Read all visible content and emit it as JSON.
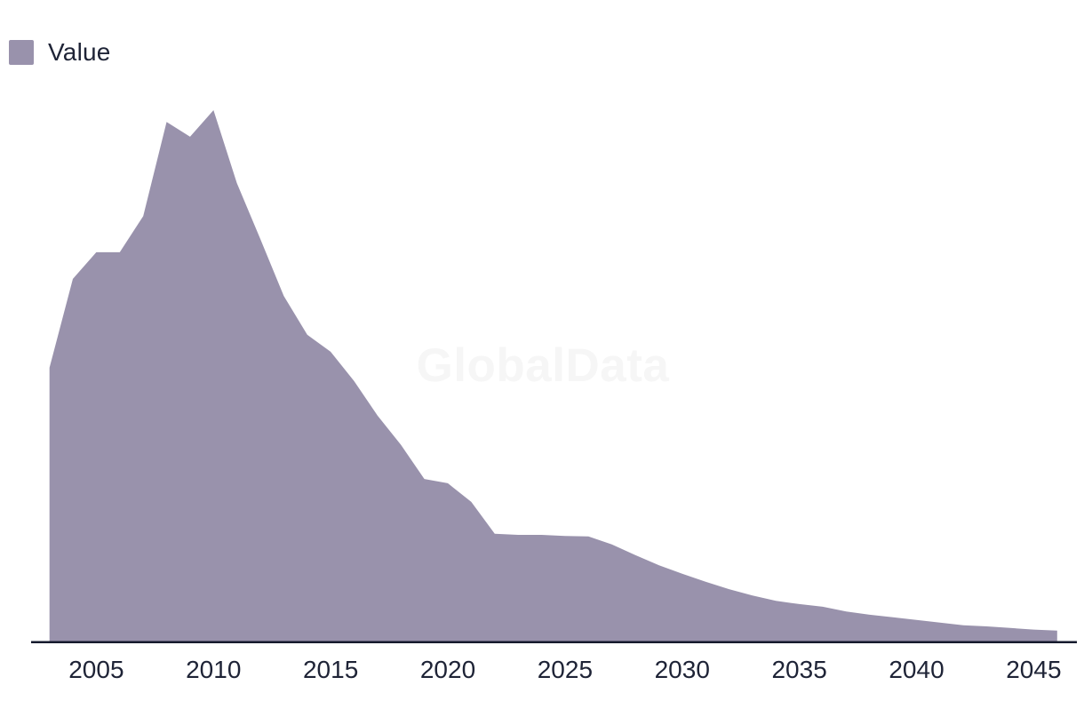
{
  "legend": {
    "label": "Value"
  },
  "watermark": {
    "text": "GlobalData"
  },
  "colors": {
    "area_fill": "#9992ac",
    "axis_line": "#161b2e",
    "tick_text": "#1e2336",
    "legend_text": "#1e2336",
    "watermark_text": "#f6f6f6",
    "background": "#ffffff"
  },
  "x_axis": {
    "tick_labels": [
      "2005",
      "2010",
      "2015",
      "2020",
      "2025",
      "2030",
      "2035",
      "2040",
      "2045"
    ]
  },
  "chart_data": {
    "type": "area",
    "title": "",
    "xlabel": "",
    "ylabel": "",
    "legend_entries": [
      "Value"
    ],
    "legend_position": "top-left",
    "grid": false,
    "y_axis_visible": false,
    "y_scale_note": "no y-axis shown; values normalized so 2010 peak = 100",
    "ylim": [
      0,
      100
    ],
    "xlim": [
      2003,
      2046
    ],
    "x_tick_labels": [
      "2005",
      "2010",
      "2015",
      "2020",
      "2025",
      "2030",
      "2035",
      "2040",
      "2045"
    ],
    "x": [
      2003,
      2004,
      2005,
      2006,
      2007,
      2008,
      2009,
      2010,
      2011,
      2012,
      2013,
      2014,
      2015,
      2016,
      2017,
      2018,
      2019,
      2020,
      2021,
      2022,
      2023,
      2024,
      2025,
      2026,
      2027,
      2028,
      2029,
      2030,
      2031,
      2032,
      2033,
      2034,
      2035,
      2036,
      2037,
      2038,
      2039,
      2040,
      2041,
      2042,
      2043,
      2044,
      2045,
      2046
    ],
    "series": [
      {
        "name": "Value",
        "values": [
          51.6,
          68.3,
          73.3,
          73.3,
          80.1,
          97.8,
          95.0,
          100,
          86.3,
          75.8,
          65.1,
          57.8,
          54.6,
          49.1,
          42.6,
          37.1,
          30.7,
          29.9,
          26.4,
          20.4,
          20.2,
          20.2,
          20.0,
          19.9,
          18.4,
          16.4,
          14.5,
          12.9,
          11.4,
          10.0,
          8.8,
          7.8,
          7.2,
          6.7,
          5.8,
          5.2,
          4.7,
          4.2,
          3.7,
          3.2,
          3.0,
          2.7,
          2.4,
          2.2
        ]
      }
    ]
  }
}
